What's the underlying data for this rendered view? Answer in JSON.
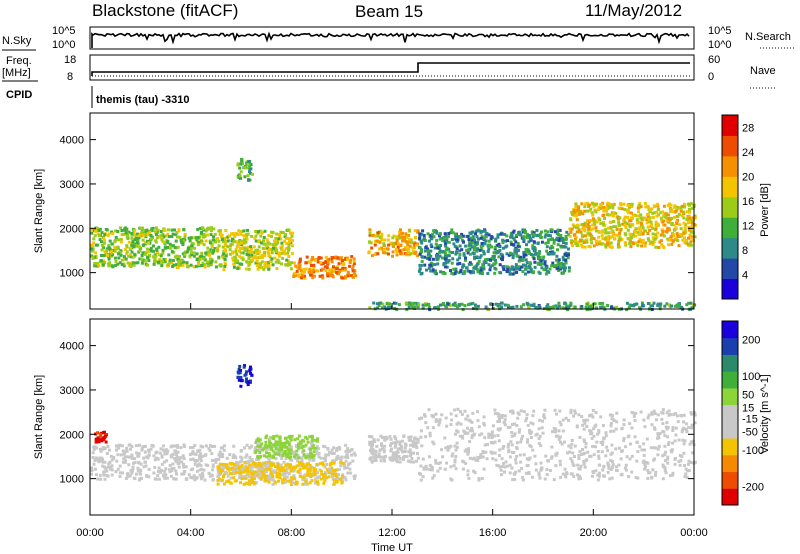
{
  "header": {
    "station": "Blackstone (fitACF)",
    "beam": "Beam 15",
    "date": "11/May/2012"
  },
  "strips": {
    "nsky_label": "N.Sky",
    "nsearch_label": "N.Search",
    "freq_label_1": "Freq.",
    "freq_label_2": "[MHz]",
    "nave_label": "Nave",
    "cpid_label": "CPID",
    "cpid_text": "themis (tau) -3310",
    "nsky_ticks": [
      "10^5",
      "10^0"
    ],
    "nsearch_ticks": [
      "10^5",
      "10^0"
    ],
    "freq_ticks": [
      "18",
      "8"
    ],
    "nave_ticks": [
      "60",
      "0"
    ]
  },
  "colors": {
    "power_scale": [
      "#1c00dc",
      "#2248a8",
      "#2e8a8a",
      "#3fae3a",
      "#9ccc18",
      "#f5c400",
      "#f59000",
      "#ee4d00",
      "#e10000"
    ],
    "velocity_scale": [
      "#e10000",
      "#ee4d00",
      "#f58a00",
      "#f5c400",
      "#c8c8c8",
      "#c8c8c8",
      "#8dd43a",
      "#3fae3a",
      "#2b8a6a",
      "#1a40b0",
      "#1c00dc"
    ]
  },
  "chart_data": [
    {
      "type": "heatmap",
      "title": "Power",
      "xlabel": "Time UT",
      "ylabel": "Slant Range [km]",
      "xlim_hours": [
        0,
        24
      ],
      "ylim_km": [
        180,
        4600
      ],
      "x_ticks": [
        "00:00",
        "04:00",
        "08:00",
        "12:00",
        "16:00",
        "20:00",
        "00:00"
      ],
      "y_ticks": [
        1000,
        2000,
        3000,
        4000
      ],
      "colorbar": {
        "label": "Power [dB]",
        "ticks": [
          4,
          8,
          12,
          16,
          20,
          24,
          28
        ],
        "range": [
          0,
          30
        ]
      },
      "series": [
        {
          "name": "echo band 00-05h",
          "t_start": 0.0,
          "t_end": 5.0,
          "range_km": [
            1150,
            2050
          ],
          "value": 14
        },
        {
          "name": "echo band 05-08h",
          "t_start": 5.0,
          "t_end": 8.0,
          "range_km": [
            1100,
            2000
          ],
          "value": 16
        },
        {
          "name": "echo band 08-10.5h",
          "t_start": 8.0,
          "t_end": 10.5,
          "range_km": [
            900,
            1400
          ],
          "value": 22
        },
        {
          "name": "patch 06h",
          "t_start": 5.8,
          "t_end": 6.4,
          "range_km": [
            3100,
            3600
          ],
          "value": 12
        },
        {
          "name": "echo band 11-13h",
          "t_start": 11.0,
          "t_end": 13.0,
          "range_km": [
            1400,
            2000
          ],
          "value": 20
        },
        {
          "name": "echo band 13-19h",
          "t_start": 13.0,
          "t_end": 19.0,
          "range_km": [
            1000,
            2000
          ],
          "value": 9
        },
        {
          "name": "echo band 19-24h",
          "t_start": 19.0,
          "t_end": 24.0,
          "range_km": [
            1600,
            2600
          ],
          "value": 18
        },
        {
          "name": "near range 11-24h",
          "t_start": 11.0,
          "t_end": 24.0,
          "range_km": [
            200,
            350
          ],
          "value": 10
        }
      ]
    },
    {
      "type": "heatmap",
      "title": "Velocity",
      "xlabel": "Time UT",
      "ylabel": "Slant Range [km]",
      "xlim_hours": [
        0,
        24
      ],
      "ylim_km": [
        180,
        4600
      ],
      "x_ticks": [
        "00:00",
        "04:00",
        "08:00",
        "12:00",
        "16:00",
        "20:00",
        "00:00"
      ],
      "y_ticks": [
        1000,
        2000,
        3000,
        4000
      ],
      "colorbar": {
        "label": "Velocity [m s^-1]",
        "ticks": [
          -200,
          -100,
          -50,
          -15,
          15,
          50,
          100,
          200
        ],
        "range": [
          -250,
          250
        ]
      },
      "series": [
        {
          "name": "ground scatter 00-10.5h",
          "t_start": 0.0,
          "t_end": 10.5,
          "range_km": [
            1000,
            1800
          ],
          "value": 0
        },
        {
          "name": "early red echoes",
          "t_start": 0.1,
          "t_end": 0.6,
          "range_km": [
            1850,
            2100
          ],
          "value": -220
        },
        {
          "name": "orange flow 05-10h",
          "t_start": 5.0,
          "t_end": 10.0,
          "range_km": [
            900,
            1400
          ],
          "value": -80
        },
        {
          "name": "green flow 06-09h",
          "t_start": 6.5,
          "t_end": 9.0,
          "range_km": [
            1500,
            2000
          ],
          "value": 40
        },
        {
          "name": "blue patch 06h",
          "t_start": 5.8,
          "t_end": 6.4,
          "range_km": [
            3100,
            3600
          ],
          "value": 200
        },
        {
          "name": "ground scatter 11-13h",
          "t_start": 11.0,
          "t_end": 13.0,
          "range_km": [
            1400,
            2000
          ],
          "value": 0
        },
        {
          "name": "ground scatter 13-24h",
          "t_start": 13.0,
          "t_end": 24.0,
          "range_km": [
            1000,
            2600
          ],
          "value": 0
        }
      ]
    }
  ]
}
